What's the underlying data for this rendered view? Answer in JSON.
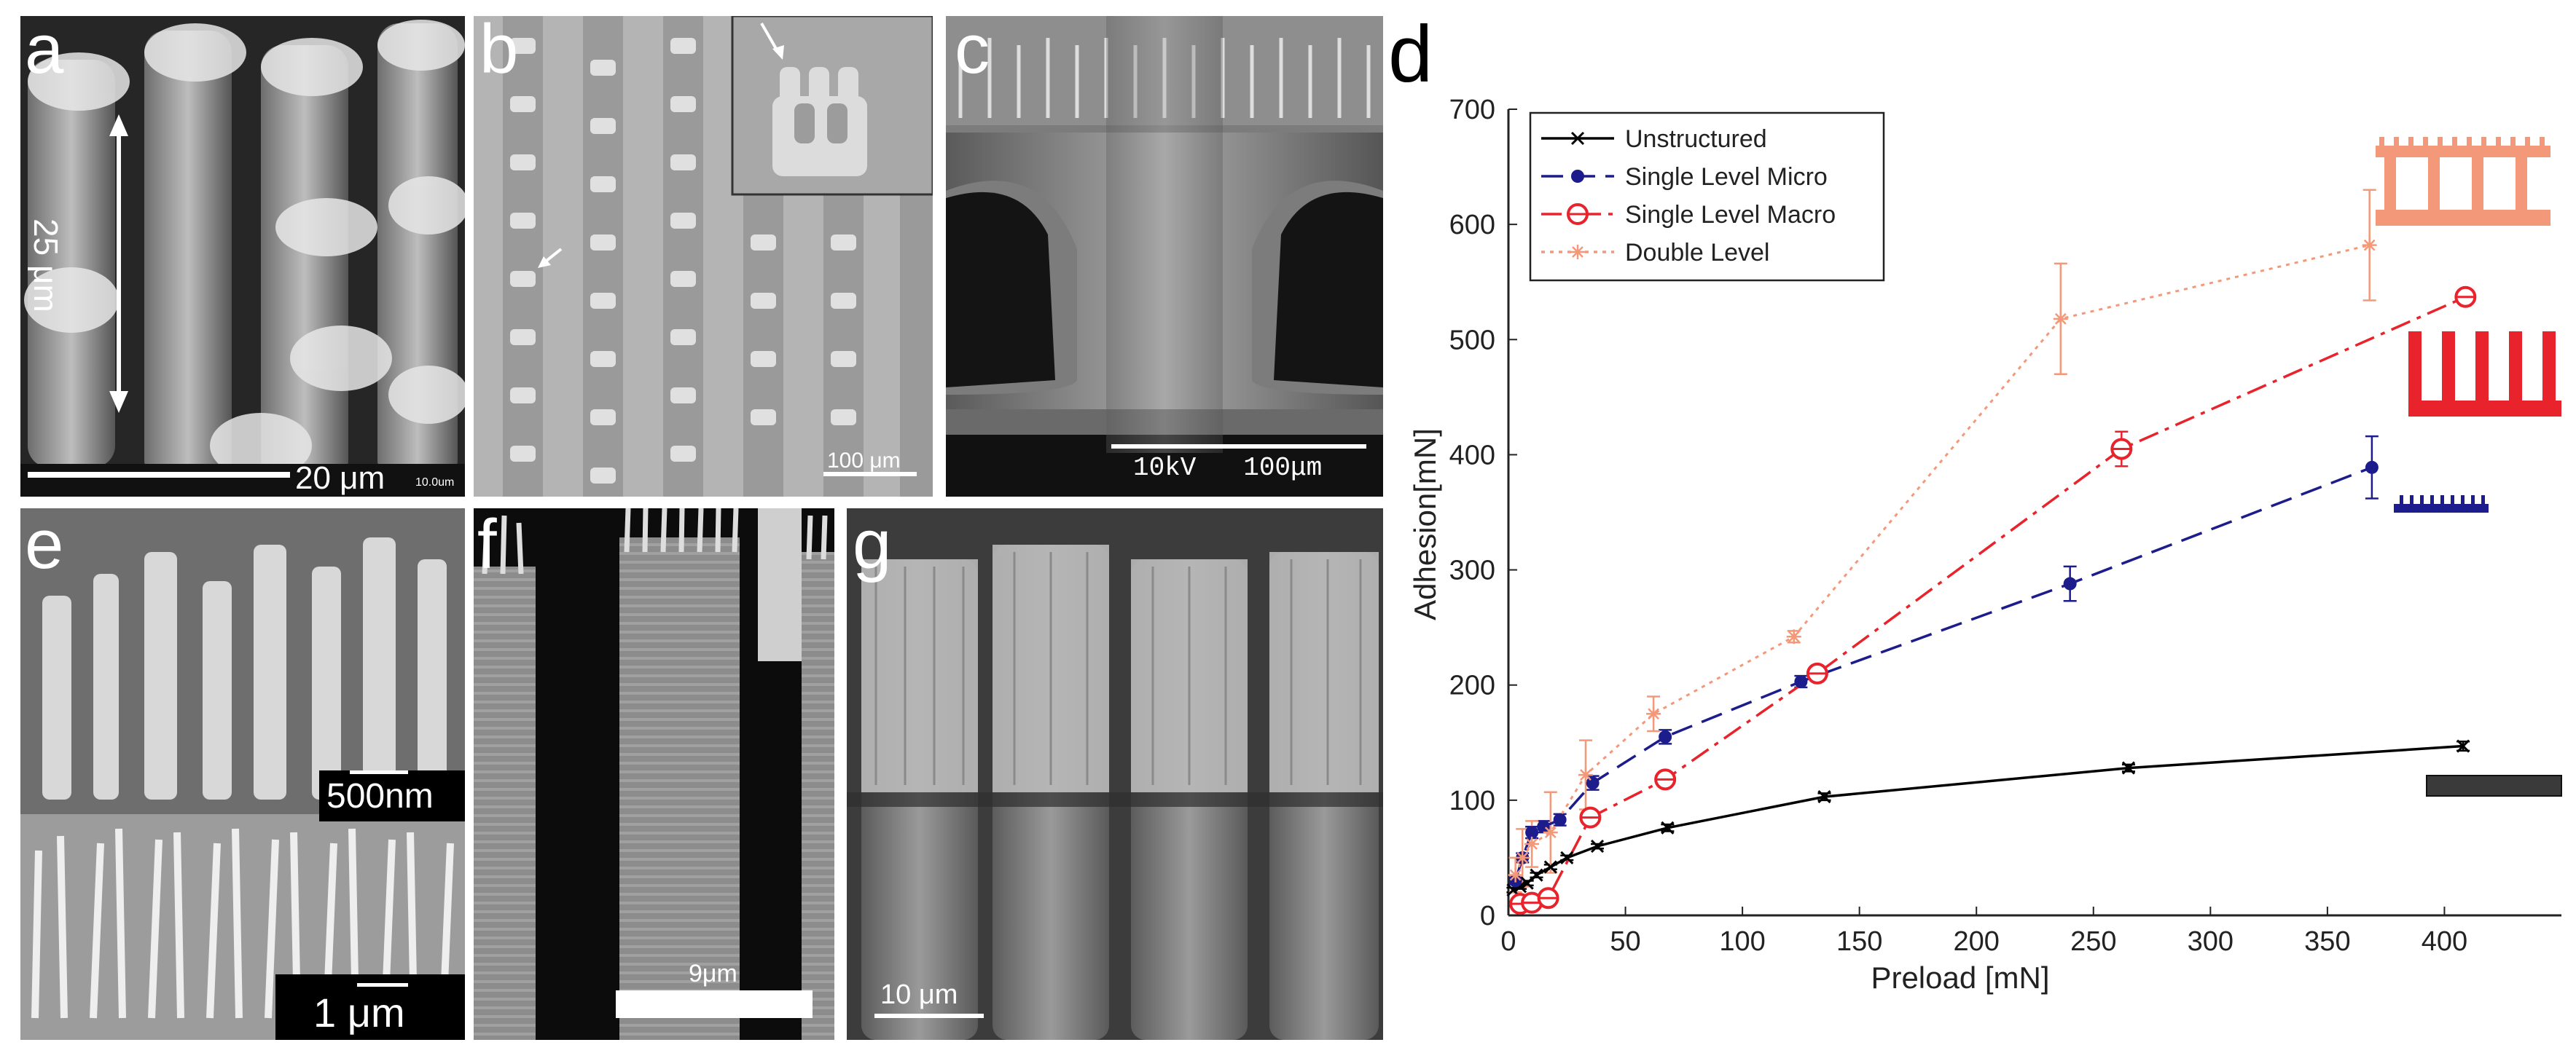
{
  "panels": {
    "a": {
      "label": "a",
      "measure": "25 μm",
      "scale": "20 μm",
      "tiny": "10.0um"
    },
    "b": {
      "label": "b",
      "scale": "100 μm"
    },
    "c": {
      "label": "c",
      "scale": "10kV   100μm"
    },
    "d": {
      "label": "d"
    },
    "e": {
      "label": "e",
      "scale_top": "500nm",
      "scale_bottom": "1 μm"
    },
    "f": {
      "label": "f",
      "scale": "9μm"
    },
    "g": {
      "label": "g",
      "scale": "10 μm"
    }
  },
  "colors": {
    "unstructured": "#000000",
    "micro": "#1c1c8c",
    "macro": "#e8232b",
    "double": "#f4987a",
    "icon_flat": "#3a3a3a"
  },
  "chart_data": {
    "type": "line",
    "xlabel": "Preload [mN]",
    "ylabel": "Adhesion[mN]",
    "xlim": [
      0,
      450
    ],
    "ylim": [
      0,
      700
    ],
    "xticks": [
      0,
      50,
      100,
      150,
      200,
      250,
      300,
      350,
      400
    ],
    "yticks": [
      0,
      100,
      200,
      300,
      400,
      500,
      600,
      700
    ],
    "legend_position": "top-left",
    "series": [
      {
        "name": "Unstructured",
        "marker": "x",
        "style": "solid",
        "points": [
          [
            2,
            22
          ],
          [
            5,
            25
          ],
          [
            8,
            28
          ],
          [
            12,
            35
          ],
          [
            18,
            42
          ],
          [
            25,
            50
          ],
          [
            38,
            60
          ],
          [
            68,
            76
          ],
          [
            135,
            103
          ],
          [
            265,
            128
          ],
          [
            408,
            147
          ]
        ],
        "err": [
          2,
          2,
          2,
          2,
          2,
          2,
          2,
          3,
          3,
          3,
          4
        ]
      },
      {
        "name": "Single Level Micro",
        "marker": "dot",
        "style": "dashed",
        "points": [
          [
            3,
            30
          ],
          [
            6,
            50
          ],
          [
            10,
            72
          ],
          [
            15,
            77
          ],
          [
            22,
            83
          ],
          [
            36,
            115
          ],
          [
            67,
            155
          ],
          [
            125,
            203
          ],
          [
            240,
            288
          ],
          [
            369,
            389
          ]
        ],
        "err": [
          3,
          4,
          5,
          5,
          5,
          6,
          6,
          5,
          15,
          27
        ]
      },
      {
        "name": "Single Level Macro",
        "marker": "circle",
        "style": "dashdot",
        "points": [
          [
            5,
            10
          ],
          [
            10,
            11
          ],
          [
            17,
            15
          ],
          [
            35,
            85
          ],
          [
            67,
            118
          ],
          [
            132,
            210
          ],
          [
            262,
            405
          ],
          [
            409,
            537
          ]
        ],
        "err": [
          2,
          2,
          2,
          6,
          5,
          5,
          15,
          3
        ]
      },
      {
        "name": "Double Level",
        "marker": "star",
        "style": "dotted",
        "points": [
          [
            3,
            35
          ],
          [
            6,
            50
          ],
          [
            10,
            62
          ],
          [
            18,
            72
          ],
          [
            33,
            122
          ],
          [
            62,
            175
          ],
          [
            122,
            242
          ],
          [
            236,
            518
          ],
          [
            368,
            582
          ]
        ],
        "err": [
          15,
          25,
          20,
          35,
          30,
          15,
          5,
          48,
          48
        ]
      }
    ]
  }
}
